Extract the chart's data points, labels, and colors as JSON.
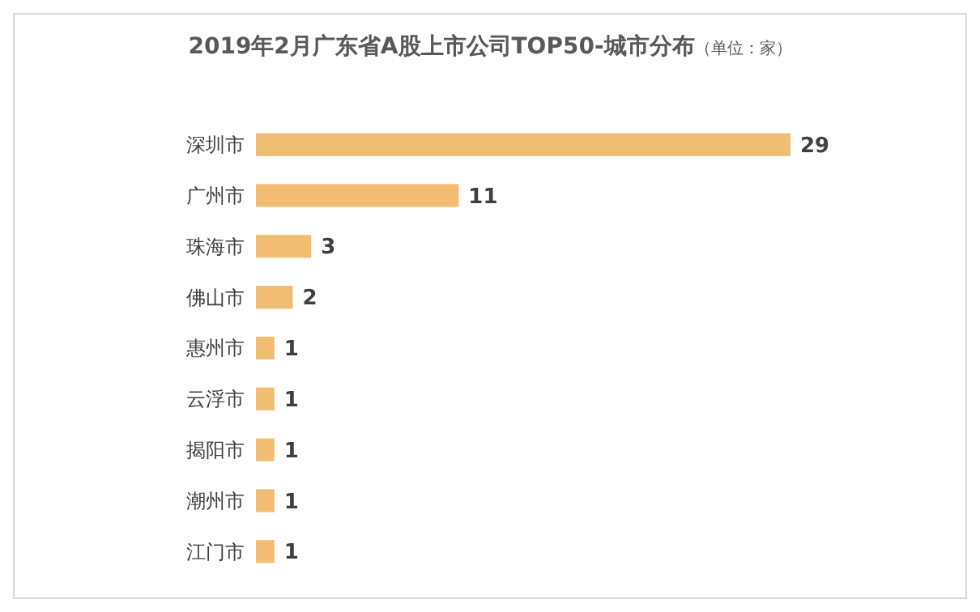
{
  "chart_data": {
    "type": "bar",
    "orientation": "horizontal",
    "title": "2019年2月广东省A股上市公司TOP50-城市分布",
    "subtitle": "（单位：家）",
    "categories": [
      "深圳市",
      "广州市",
      "珠海市",
      "佛山市",
      "惠州市",
      "云浮市",
      "揭阳市",
      "潮州市",
      "江门市"
    ],
    "values": [
      29,
      11,
      3,
      2,
      1,
      1,
      1,
      1,
      1
    ],
    "color": "#f0bd72",
    "data_labels": true
  }
}
